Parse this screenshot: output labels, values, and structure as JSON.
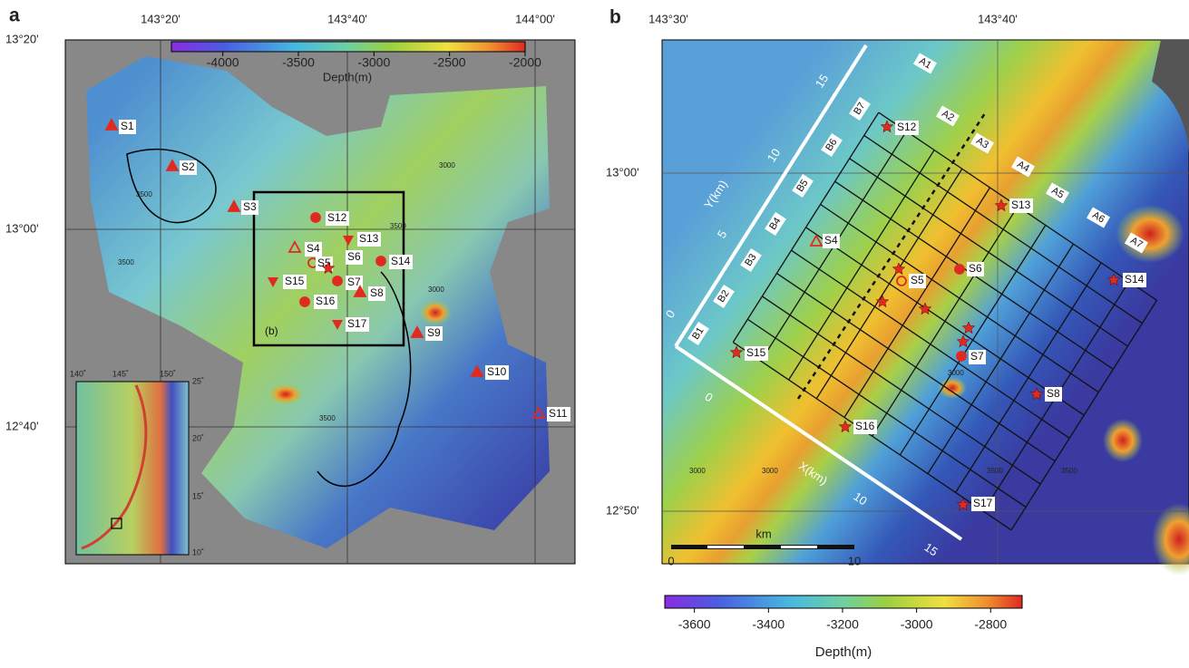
{
  "panel_a": {
    "label": "a",
    "lon_labels": [
      "143°20'",
      "143°40'",
      "144°00'"
    ],
    "lat_labels": [
      "13°20'",
      "13°00'",
      "12°40'"
    ],
    "colorbar": {
      "range": [
        -4340,
        -2000
      ],
      "ticks": [
        -4000,
        -3500,
        -3000,
        -2500,
        -2000
      ],
      "label": "Depth(m)"
    },
    "stations": [
      "S1",
      "S2",
      "S3",
      "S4",
      "S5",
      "S6",
      "S7",
      "S8",
      "S9",
      "S10",
      "S11",
      "S12",
      "S13",
      "S14",
      "S15",
      "S16",
      "S17"
    ],
    "box_label": "(b)",
    "contour_labels": [
      "3500",
      "3500",
      "3000",
      "3500",
      "3000",
      "3500"
    ],
    "inset": {
      "lon_labels": [
        "140˚",
        "145˚",
        "150˚"
      ],
      "lat_labels": [
        "25˚",
        "20˚",
        "15˚",
        "10˚"
      ]
    }
  },
  "panel_b": {
    "label": "b",
    "lon_labels": [
      "143°30'",
      "143°40'"
    ],
    "lat_labels": [
      "13°00'",
      "12°50'"
    ],
    "ridge_labels": [
      "A1",
      "A2",
      "A3",
      "A4",
      "A5",
      "A6",
      "A7"
    ],
    "line_labels": [
      "B1",
      "B2",
      "B3",
      "B4",
      "B5",
      "B6",
      "B7"
    ],
    "stations": [
      "S4",
      "S5",
      "S6",
      "S7",
      "S8",
      "S12",
      "S13",
      "S14",
      "S15",
      "S16",
      "S17"
    ],
    "y_axis": {
      "label": "Y(km)",
      "ticks": [
        "0",
        "5",
        "10",
        "15"
      ]
    },
    "x_axis": {
      "label": "X(km)",
      "ticks": [
        "0",
        "10",
        "15"
      ]
    },
    "scale_bar": {
      "unit": "km",
      "start": "0",
      "end": "10"
    },
    "contour_labels": [
      "3000",
      "3000",
      "3000",
      "3500",
      "3500"
    ],
    "colorbar": {
      "range": [
        -3680,
        -2715
      ],
      "ticks": [
        -3600,
        -3400,
        -3200,
        -3000,
        -2800
      ],
      "label": "Depth(m)"
    }
  }
}
